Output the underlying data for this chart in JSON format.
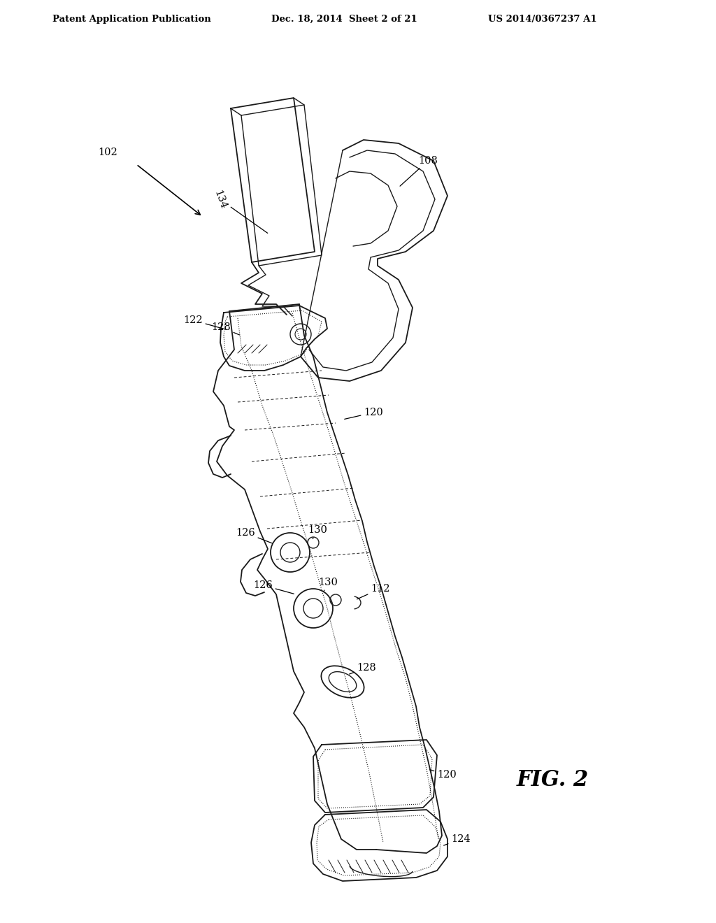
{
  "background": "#ffffff",
  "line_color": "#1a1a1a",
  "header_left": "Patent Application Publication",
  "header_mid": "Dec. 18, 2014  Sheet 2 of 21",
  "header_right": "US 2014/0367237 A1",
  "fig_label": "FIG. 2"
}
